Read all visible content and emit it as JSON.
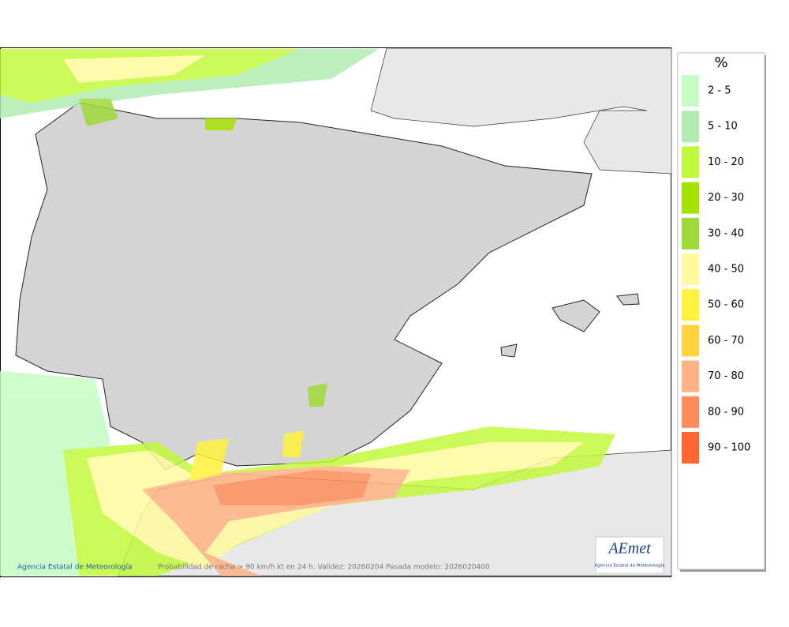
{
  "map": {
    "footer_credit": "Agencia Estatal de Meteorología",
    "footer_caption": "Probabilidad de racha > 90 km/h kt en 24 h. Validez: 20260204 Pasada modelo: 2026020400",
    "logo_text": "AEmet",
    "logo_subtext": "Agencia Estatal de Meteorología"
  },
  "legend": {
    "title": "%",
    "items": [
      {
        "label": "2 - 5",
        "color": "#c4fcc4"
      },
      {
        "label": "5 - 10",
        "color": "#b2ecb2"
      },
      {
        "label": "10 - 20",
        "color": "#c2f83a"
      },
      {
        "label": "20 - 30",
        "color": "#a4e200"
      },
      {
        "label": "30 - 40",
        "color": "#a0d93a"
      },
      {
        "label": "40 - 50",
        "color": "#fffa9e"
      },
      {
        "label": "50 - 60",
        "color": "#fff23c"
      },
      {
        "label": "60 - 70",
        "color": "#ffd43c"
      },
      {
        "label": "70 - 80",
        "color": "#ffb384"
      },
      {
        "label": "80 - 90",
        "color": "#ff8c5a"
      },
      {
        "label": "90 - 100",
        "color": "#ff6633"
      }
    ]
  }
}
